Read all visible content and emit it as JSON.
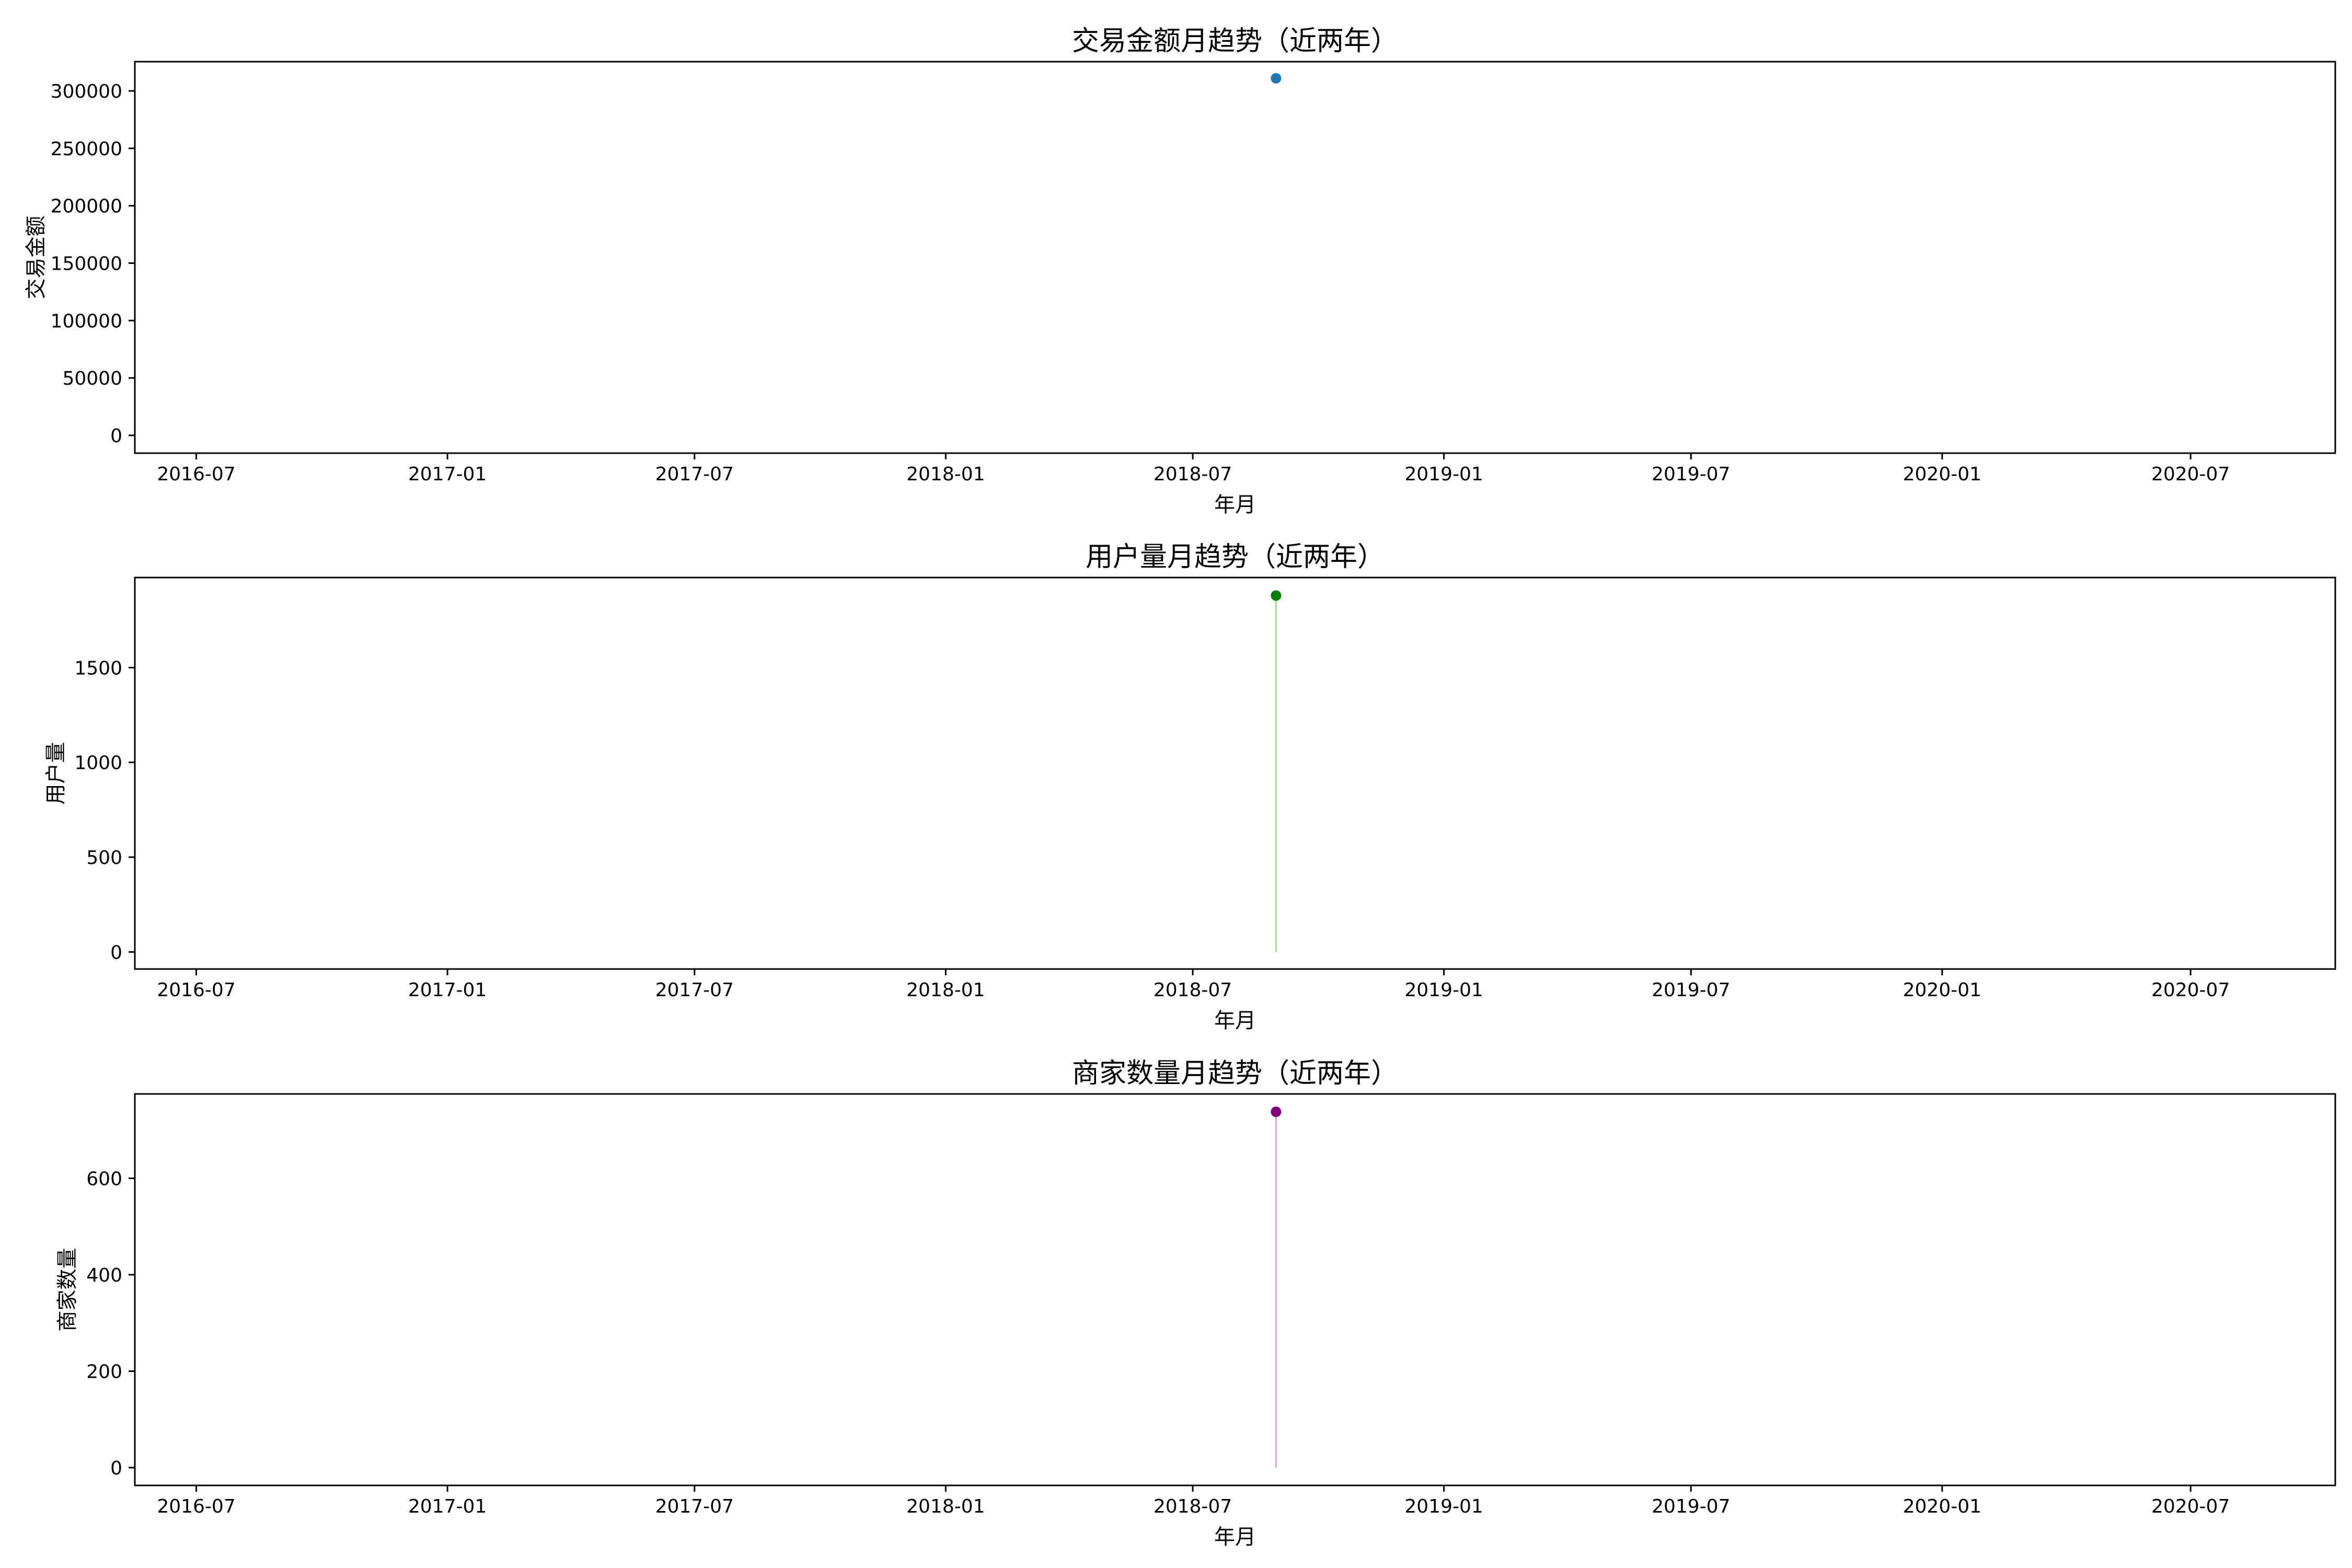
{
  "chart_data": [
    {
      "type": "scatter",
      "title": "交易金额月趋势（近两年）",
      "xlabel": "年月",
      "ylabel": "交易金额",
      "x_ticks": [
        "2016-07",
        "2017-01",
        "2017-07",
        "2018-01",
        "2018-07",
        "2019-01",
        "2019-07",
        "2020-01",
        "2020-07"
      ],
      "y_ticks": [
        0,
        50000,
        100000,
        150000,
        200000,
        250000,
        300000
      ],
      "ylim": [
        -15500,
        325500
      ],
      "xlim": [
        "2016-05-17",
        "2020-10-15"
      ],
      "points": [
        {
          "x": "2018-08-31",
          "y": 311000
        }
      ],
      "color": "#1f77b4",
      "stem": false
    },
    {
      "type": "line",
      "title": "用户量月趋势（近两年）",
      "xlabel": "年月",
      "ylabel": "用户量",
      "x_ticks": [
        "2016-07",
        "2017-01",
        "2017-07",
        "2018-01",
        "2018-07",
        "2019-01",
        "2019-07",
        "2020-01",
        "2020-07"
      ],
      "y_ticks": [
        0,
        500,
        1000,
        1500
      ],
      "ylim": [
        -90,
        1975
      ],
      "xlim": [
        "2016-05-17",
        "2020-10-15"
      ],
      "points": [
        {
          "x": "2018-08-31",
          "y": 1880
        }
      ],
      "color": "#008000",
      "stem_color": "#98df8a",
      "stem": true
    },
    {
      "type": "line",
      "title": "商家数量月趋势（近两年）",
      "xlabel": "年月",
      "ylabel": "商家数量",
      "x_ticks": [
        "2016-07",
        "2017-01",
        "2017-07",
        "2018-01",
        "2018-07",
        "2019-01",
        "2019-07",
        "2020-01",
        "2020-07"
      ],
      "y_ticks": [
        0,
        200,
        400,
        600
      ],
      "ylim": [
        -37,
        775
      ],
      "xlim": [
        "2016-05-17",
        "2020-10-15"
      ],
      "points": [
        {
          "x": "2018-08-31",
          "y": 738
        }
      ],
      "color": "#800080",
      "stem_color": "#dda0dd",
      "stem": true
    }
  ]
}
